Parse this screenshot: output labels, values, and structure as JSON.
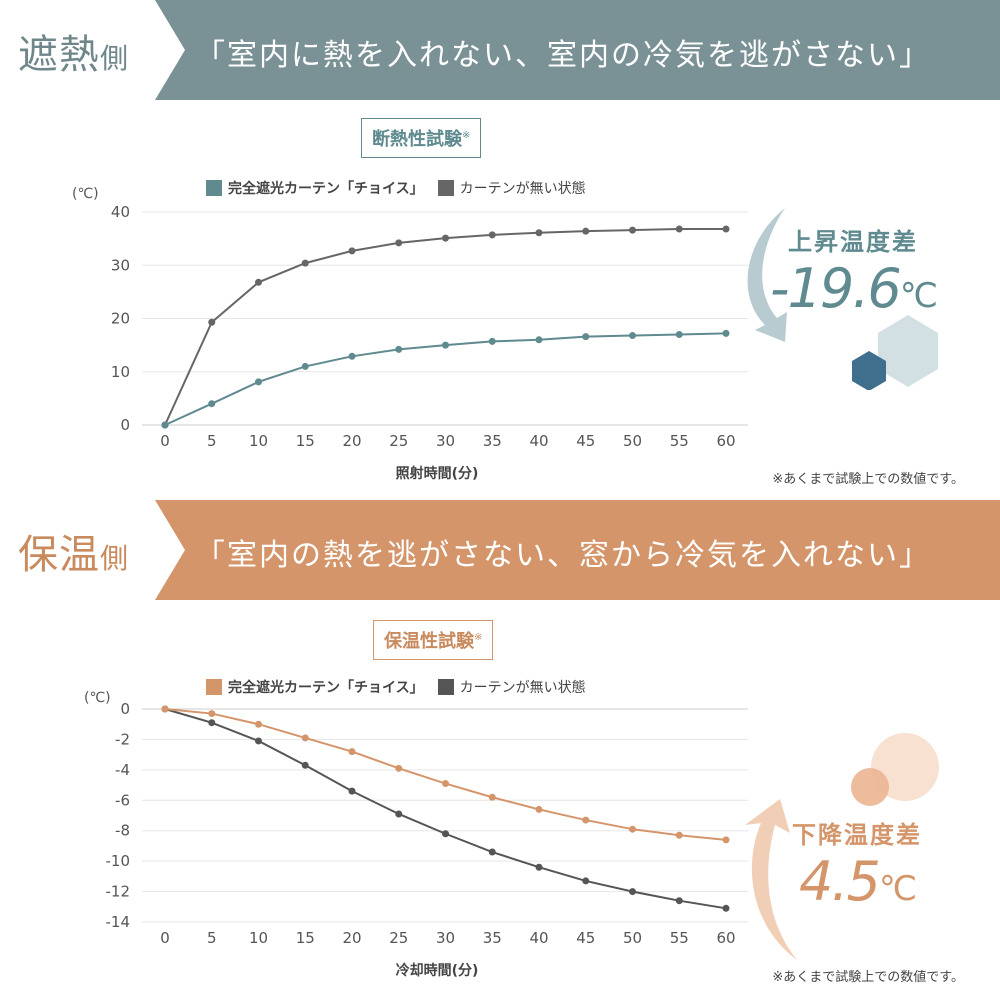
{
  "sections": [
    {
      "tag": "遮熱",
      "tag_suffix": "側",
      "slogan": "「室内に熱を入れない、室内の冷気を逃がさない」",
      "test_title": "断熱性試験",
      "test_mark": "※",
      "diff_label": "上昇温度差",
      "diff_value": "-19.6",
      "diff_unit": "℃",
      "note": "※あくまで試験上での数値です。",
      "accent": "#5f8a8f",
      "band": "#7a9196"
    },
    {
      "tag": "保温",
      "tag_suffix": "側",
      "slogan": "「室内の熱を逃がさない、窓から冷気を入れない」",
      "test_title": "保温性試験",
      "test_mark": "※",
      "diff_label": "下降温度差",
      "diff_value": "4.5",
      "diff_unit": "℃",
      "note": "※あくまで試験上での数値です。",
      "accent": "#d4956a",
      "band": "#d4956a"
    }
  ],
  "chart_data": [
    {
      "type": "line",
      "title": "断熱性試験",
      "xlabel": "照射時間(分)",
      "ylabel": "(℃)",
      "ylim": [
        0,
        40
      ],
      "yticks": [
        0,
        10,
        20,
        30,
        40
      ],
      "x": [
        0,
        5,
        10,
        15,
        20,
        25,
        30,
        35,
        40,
        45,
        50,
        55,
        60
      ],
      "legend": [
        "完全遮光カーテン「チョイス」",
        "カーテンが無い状態"
      ],
      "legend_placement": "top",
      "series": [
        {
          "name": "完全遮光カーテン「チョイス」",
          "color": "#5f8a8f",
          "values": [
            0,
            4.0,
            8.1,
            11.0,
            12.9,
            14.2,
            15.0,
            15.7,
            16.0,
            16.6,
            16.8,
            17.0,
            17.2
          ]
        },
        {
          "name": "カーテンが無い状態",
          "color": "#666666",
          "values": [
            0,
            19.3,
            26.8,
            30.4,
            32.7,
            34.2,
            35.1,
            35.7,
            36.1,
            36.4,
            36.6,
            36.8,
            36.8
          ]
        }
      ]
    },
    {
      "type": "line",
      "title": "保温性試験",
      "xlabel": "冷却時間(分)",
      "ylabel": "(℃)",
      "ylim": [
        -14,
        0
      ],
      "yticks": [
        0,
        -2,
        -4,
        -6,
        -8,
        -10,
        -12,
        -14
      ],
      "x": [
        0,
        5,
        10,
        15,
        20,
        25,
        30,
        35,
        40,
        45,
        50,
        55,
        60
      ],
      "legend": [
        "完全遮光カーテン「チョイス」",
        "カーテンが無い状態"
      ],
      "legend_placement": "top",
      "series": [
        {
          "name": "完全遮光カーテン「チョイス」",
          "color": "#d4956a",
          "values": [
            0,
            -0.3,
            -1.0,
            -1.9,
            -2.8,
            -3.9,
            -4.9,
            -5.8,
            -6.6,
            -7.3,
            -7.9,
            -8.3,
            -8.6
          ]
        },
        {
          "name": "カーテンが無い状態",
          "color": "#555555",
          "values": [
            0,
            -0.9,
            -2.1,
            -3.7,
            -5.4,
            -6.9,
            -8.2,
            -9.4,
            -10.4,
            -11.3,
            -12.0,
            -12.6,
            -13.1
          ]
        }
      ]
    }
  ]
}
